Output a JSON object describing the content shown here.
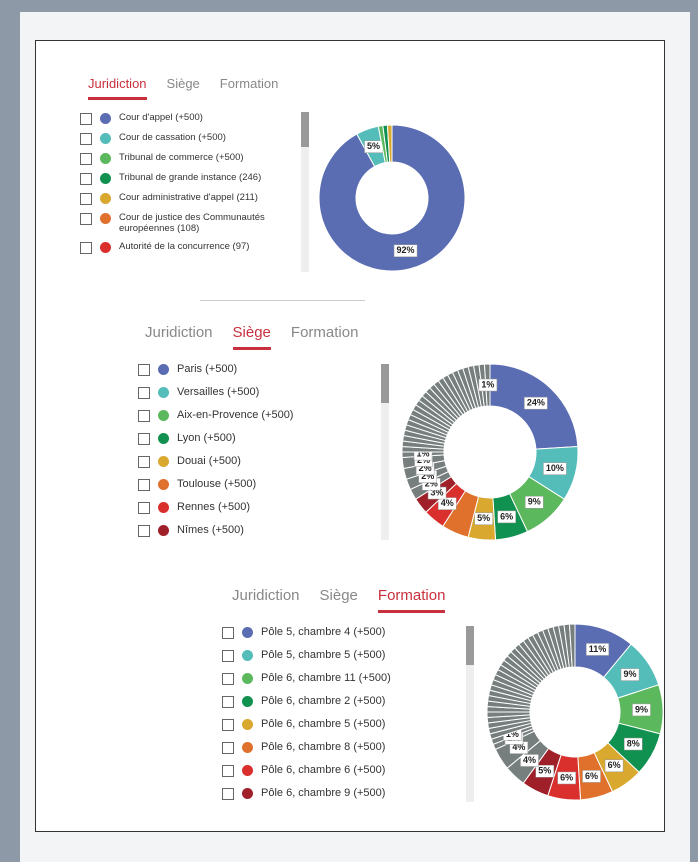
{
  "panels": [
    {
      "tabs": [
        "Juridiction",
        "Siège",
        "Formation"
      ],
      "active_tab": 0,
      "items": [
        {
          "label": "Cour d'appel (+500)",
          "color": "#5a6db2"
        },
        {
          "label": "Cour de cassation (+500)",
          "color": "#55bdb9"
        },
        {
          "label": "Tribunal de commerce (+500)",
          "color": "#5cb85c"
        },
        {
          "label": "Tribunal de grande instance (246)",
          "color": "#119150"
        },
        {
          "label": "Cour administrative d'appel (211)",
          "color": "#d9a82f"
        },
        {
          "label": "Cour de justice des Communautés européennes (108)",
          "color": "#e0712d"
        },
        {
          "label": "Autorité de la concurrence (97)",
          "color": "#d9302e"
        }
      ],
      "donut": {
        "type": "donut",
        "values": [
          92,
          5,
          1,
          1,
          1
        ],
        "value_labels": [
          "92%",
          "5%",
          null,
          null,
          null
        ],
        "other_color": "#767e7e"
      }
    },
    {
      "tabs": [
        "Juridiction",
        "Siège",
        "Formation"
      ],
      "active_tab": 1,
      "items": [
        {
          "label": "Paris (+500)",
          "color": "#5a6db2"
        },
        {
          "label": "Versailles (+500)",
          "color": "#55bdb9"
        },
        {
          "label": "Aix-en-Provence (+500)",
          "color": "#5cb85c"
        },
        {
          "label": "Lyon (+500)",
          "color": "#119150"
        },
        {
          "label": "Douai (+500)",
          "color": "#d9a82f"
        },
        {
          "label": "Toulouse (+500)",
          "color": "#e0712d"
        },
        {
          "label": "Rennes (+500)",
          "color": "#d9302e"
        },
        {
          "label": "Nîmes (+500)",
          "color": "#a0202a"
        }
      ],
      "donut": {
        "type": "donut",
        "values": [
          24,
          10,
          9,
          6,
          5,
          5,
          4,
          3,
          2,
          2,
          2,
          2,
          1,
          1,
          1,
          1,
          1,
          1,
          1,
          1,
          1,
          1,
          1,
          1,
          1,
          1,
          1,
          1,
          1,
          1,
          1,
          1,
          1,
          1,
          1,
          1,
          1,
          1
        ],
        "value_labels": [
          "24%",
          "10%",
          "9%",
          "6%",
          "5%",
          null,
          "4%",
          "3%",
          "2%",
          "2%",
          "2%",
          "2%",
          "1%",
          null,
          null,
          null,
          null,
          null,
          null,
          null,
          null,
          null,
          null,
          null,
          null,
          null,
          null,
          null,
          null,
          null,
          null,
          null,
          null,
          null,
          null,
          null,
          null,
          "1%"
        ],
        "other_color": "#767e7e"
      }
    },
    {
      "tabs": [
        "Juridiction",
        "Siège",
        "Formation"
      ],
      "active_tab": 2,
      "items": [
        {
          "label": "Pôle 5, chambre 4 (+500)",
          "color": "#5a6db2"
        },
        {
          "label": "Pôle 5, chambre 5 (+500)",
          "color": "#55bdb9"
        },
        {
          "label": "Pôle 6, chambre 11 (+500)",
          "color": "#5cb85c"
        },
        {
          "label": "Pôle 6, chambre 2 (+500)",
          "color": "#119150"
        },
        {
          "label": "Pôle 6, chambre 5 (+500)",
          "color": "#d9a82f"
        },
        {
          "label": "Pôle 6, chambre 8 (+500)",
          "color": "#e0712d"
        },
        {
          "label": "Pôle 6, chambre 6 (+500)",
          "color": "#d9302e"
        },
        {
          "label": "Pôle 6, chambre 9 (+500)",
          "color": "#a0202a"
        }
      ],
      "donut": {
        "type": "donut",
        "values": [
          11,
          9,
          9,
          8,
          6,
          6,
          6,
          5,
          4,
          4,
          1,
          1,
          1,
          1,
          1,
          1,
          1,
          1,
          1,
          1,
          1,
          1,
          1,
          1,
          1,
          1,
          1,
          1,
          1,
          1,
          1,
          1,
          1,
          1,
          1,
          1,
          1,
          1,
          1,
          1,
          1,
          1
        ],
        "value_labels": [
          "11%",
          "9%",
          "9%",
          "8%",
          "6%",
          "6%",
          "6%",
          "5%",
          "4%",
          "4%",
          "1%",
          "1%",
          null,
          null,
          null,
          null,
          null,
          null,
          null,
          null,
          null,
          null,
          null,
          null,
          null,
          null,
          null,
          null,
          null,
          null,
          null,
          null,
          null,
          null,
          null,
          null,
          null,
          null,
          null,
          null,
          null,
          null
        ],
        "other_color": "#767e7e"
      }
    }
  ]
}
